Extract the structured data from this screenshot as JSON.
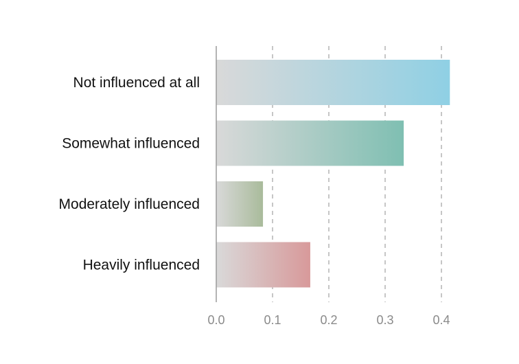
{
  "chart_data": {
    "type": "bar",
    "orientation": "horizontal",
    "title": "",
    "xlabel": "",
    "ylabel": "",
    "categories": [
      "Not influenced at all",
      "Somewhat influenced",
      "Moderately influenced",
      "Heavily influenced"
    ],
    "values": [
      0.415,
      0.333,
      0.083,
      0.167
    ],
    "colors": [
      "#8fd0e4",
      "#7fbfb2",
      "#a9bb9b",
      "#d8999a"
    ],
    "base_color": "#d9d9d9",
    "xlim": [
      0,
      0.4
    ],
    "xticks": [
      0.0,
      0.1,
      0.2,
      0.3,
      0.4
    ],
    "xtick_labels": [
      "0.0",
      "0.1",
      "0.2",
      "0.3",
      "0.4"
    ],
    "grid": "vertical-dashed",
    "legend": "none"
  }
}
